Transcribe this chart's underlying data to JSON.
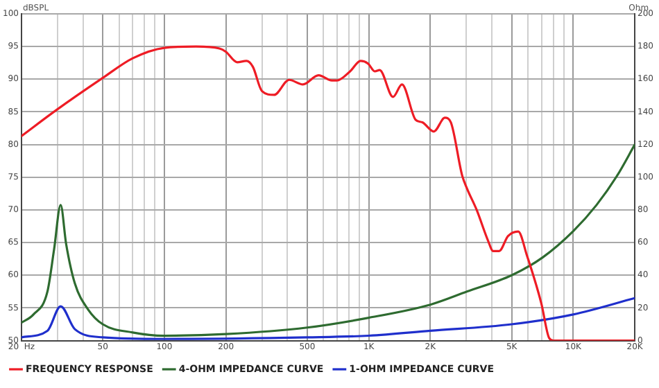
{
  "chart_data": {
    "type": "line",
    "ylabel": "dBSPL",
    "y2label": "Ohm",
    "log": "x",
    "grid": true,
    "legend": "bottom",
    "marker": "none",
    "line_style": "solid",
    "xlim": [
      20,
      20000
    ],
    "xticks": [
      {
        "value": 20,
        "label": "20  Hz"
      },
      {
        "value": 30,
        "label": null
      },
      {
        "value": 40,
        "label": null
      },
      50,
      {
        "value": 60,
        "label": null
      },
      {
        "value": 70,
        "label": null
      },
      {
        "value": 80,
        "label": null
      },
      {
        "value": 90,
        "label": null
      },
      100,
      200,
      {
        "value": 300,
        "label": null
      },
      {
        "value": 400,
        "label": null
      },
      500,
      {
        "value": 600,
        "label": null
      },
      {
        "value": 700,
        "label": null
      },
      {
        "value": 800,
        "label": null
      },
      {
        "value": 900,
        "label": null
      },
      {
        "value": 1000,
        "label": "1K"
      },
      {
        "value": 2000,
        "label": "2K"
      },
      {
        "value": 3000,
        "label": null
      },
      {
        "value": 4000,
        "label": null
      },
      {
        "value": 5000,
        "label": "5K"
      },
      {
        "value": 6000,
        "label": null
      },
      {
        "value": 7000,
        "label": null
      },
      {
        "value": 8000,
        "label": null
      },
      {
        "value": 9000,
        "label": null
      },
      {
        "value": 10000,
        "label": "10K"
      },
      {
        "value": 20000,
        "label": "20K"
      }
    ],
    "ylim": [
      50,
      100
    ],
    "yticks": [
      50,
      55,
      60,
      65,
      70,
      75,
      80,
      85,
      90,
      95,
      100
    ],
    "y2lim": [
      0,
      200
    ],
    "y2ticks": [
      0,
      20,
      40,
      60,
      80,
      100,
      120,
      140,
      160,
      180,
      200
    ],
    "series": [
      {
        "name": "FREQUENCY RESPONSE",
        "color": "#ee1c25",
        "x": [
          20,
          29.7,
          50,
          70,
          100,
          143,
          186,
          200,
          227,
          252,
          271,
          300,
          344,
          408,
          476,
          568,
          660,
          698,
          810,
          912,
          991,
          1072,
          1130,
          1314,
          1453,
          1694,
          1827,
          2080,
          2357,
          2520,
          2860,
          3020,
          3370,
          3830,
          4060,
          4340,
          4800,
          5380,
          5940,
          6980,
          7620,
          8000,
          20000
        ],
        "values": [
          81.3,
          85.3,
          90.2,
          93.2,
          94.8,
          95.0,
          94.7,
          94.2,
          92.6,
          92.8,
          91.9,
          88.2,
          87.6,
          89.9,
          89.2,
          90.6,
          89.8,
          89.8,
          91.2,
          92.8,
          92.4,
          91.2,
          91.4,
          87.3,
          89.2,
          83.8,
          83.4,
          82.0,
          84.1,
          83.4,
          75.3,
          73.3,
          70.0,
          65.3,
          63.7,
          63.7,
          66.0,
          66.7,
          63.0,
          55.7,
          50.4,
          50,
          50
        ]
      },
      {
        "name": "4-OHM IMPEDANCE CURVE",
        "color": "#2e6b30",
        "axis": "y2",
        "x": [
          20,
          22.9,
          26.8,
          28.9,
          31.1,
          33.1,
          36.5,
          42.4,
          50,
          70,
          100,
          200,
          500,
          1000,
          2000,
          3020,
          5000,
          7100,
          10000,
          13000,
          16400,
          20000
        ],
        "values": [
          11,
          16,
          30,
          56,
          83,
          59,
          35,
          19,
          10,
          5,
          3,
          4,
          8,
          14,
          22,
          30,
          40,
          51,
          67,
          83,
          101,
          120
        ]
      },
      {
        "name": "1-OHM IMPEDANCE CURVE",
        "color": "#1f2fcc",
        "axis": "y2",
        "x": [
          20,
          26.8,
          31.1,
          36.5,
          50,
          100,
          500,
          1000,
          2000,
          5000,
          10000,
          20000
        ],
        "values": [
          2,
          6,
          21,
          7,
          2,
          1,
          2,
          3,
          6,
          10,
          16,
          26
        ]
      }
    ]
  }
}
